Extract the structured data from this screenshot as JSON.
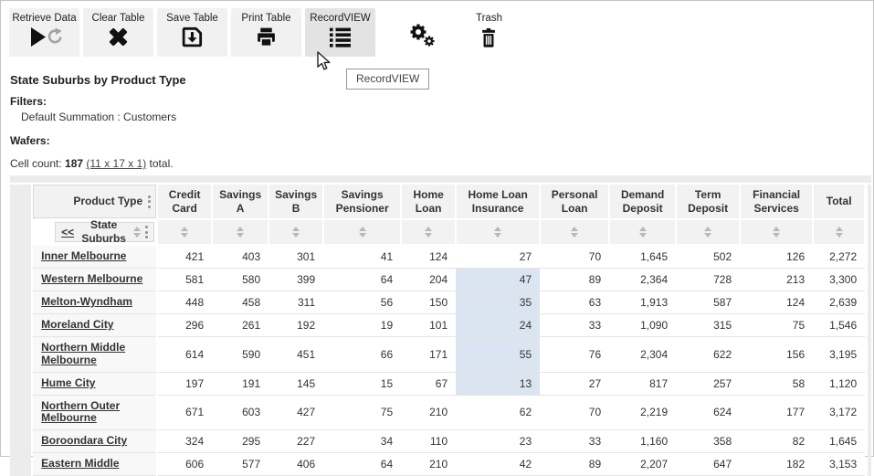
{
  "toolbar": {
    "buttons": [
      {
        "label": "Retrieve Data",
        "icon": "play-refresh-icon"
      },
      {
        "label": "Clear Table",
        "icon": "clear-x-icon"
      },
      {
        "label": "Save Table",
        "icon": "save-disk-icon"
      },
      {
        "label": "Print Table",
        "icon": "printer-icon"
      },
      {
        "label": "RecordVIEW",
        "icon": "record-list-icon",
        "state": "hovered"
      }
    ],
    "settings_icon": "gears-icon",
    "trash": {
      "label": "Trash",
      "icon": "trash-icon"
    }
  },
  "tooltip": {
    "text": "RecordVIEW"
  },
  "page": {
    "title": "State Suburbs by Product Type",
    "filters_label": "Filters:",
    "filters_value": "Default Summation : Customers",
    "wafers_label": "Wafers:",
    "cell_count": {
      "prefix": "Cell count: ",
      "count": "187",
      "link": "(11 x 17 x 1)",
      "suffix": " total."
    }
  },
  "table": {
    "corner_label": "Product Type",
    "row_dimension": {
      "collapse": "<<",
      "label": "State Suburbs"
    },
    "columns": [
      "Credit Card",
      "Savings A",
      "Savings B",
      "Savings Pensioner",
      "Home Loan",
      "Home Loan Insurance",
      "Personal Loan",
      "Demand Deposit",
      "Term Deposit",
      "Financial Services",
      "Total"
    ],
    "rows": [
      {
        "label": "Inner Melbourne",
        "values": [
          "421",
          "403",
          "301",
          "41",
          "124",
          "27",
          "70",
          "1,645",
          "502",
          "126",
          "2,272"
        ]
      },
      {
        "label": "Western Melbourne",
        "values": [
          "581",
          "580",
          "399",
          "64",
          "204",
          "47",
          "89",
          "2,364",
          "728",
          "213",
          "3,300"
        ]
      },
      {
        "label": "Melton-Wyndham",
        "values": [
          "448",
          "458",
          "311",
          "56",
          "150",
          "35",
          "63",
          "1,913",
          "587",
          "124",
          "2,639"
        ]
      },
      {
        "label": "Moreland City",
        "values": [
          "296",
          "261",
          "192",
          "19",
          "101",
          "24",
          "33",
          "1,090",
          "315",
          "75",
          "1,546"
        ]
      },
      {
        "label": "Northern Middle Melbourne",
        "values": [
          "614",
          "590",
          "451",
          "66",
          "171",
          "55",
          "76",
          "2,304",
          "622",
          "156",
          "3,195"
        ]
      },
      {
        "label": "Hume City",
        "values": [
          "197",
          "191",
          "145",
          "15",
          "67",
          "13",
          "27",
          "817",
          "257",
          "58",
          "1,120"
        ]
      },
      {
        "label": "Northern Outer Melbourne",
        "values": [
          "671",
          "603",
          "427",
          "75",
          "210",
          "62",
          "70",
          "2,219",
          "624",
          "177",
          "3,172"
        ]
      },
      {
        "label": "Boroondara City",
        "values": [
          "324",
          "295",
          "227",
          "34",
          "110",
          "23",
          "33",
          "1,160",
          "358",
          "82",
          "1,645"
        ]
      },
      {
        "label": "Eastern Middle",
        "values": [
          "606",
          "577",
          "406",
          "64",
          "210",
          "42",
          "89",
          "2,207",
          "647",
          "182",
          "3,153"
        ]
      }
    ],
    "selection": {
      "column": "Home Loan Insurance",
      "col_index": 5,
      "row_indexes": [
        1,
        2,
        3,
        4,
        5
      ],
      "color": "#dbe4f1"
    }
  }
}
